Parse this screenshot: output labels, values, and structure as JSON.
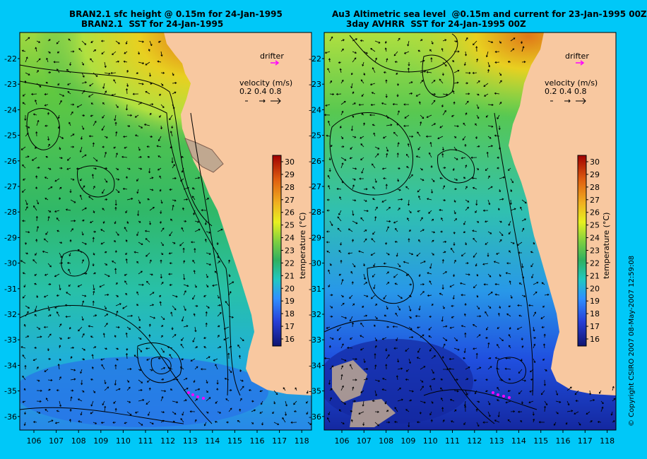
{
  "panels": [
    {
      "title1": "BRAN2.1 sfc height @ 0.15m for 24-Jan-1995",
      "title2": "BRAN2.1  SST for 24-Jan-1995"
    },
    {
      "title1": "Au3 Altimetric sea level  @0.15m and current for 23-Jan-1995 00Z",
      "title2": "3day AVHRR  SST for 24-Jan-1995 00Z"
    }
  ],
  "drifter_label": "drifter",
  "velocity": {
    "label": "velocity (m/s)",
    "scale": "0.2 0.4 0.8"
  },
  "colorbar": {
    "label": "temperature (°C)",
    "min": 16,
    "max": 30,
    "ticks": [
      "30",
      "29",
      "28",
      "27",
      "26",
      "25",
      "24",
      "23",
      "22",
      "21",
      "20",
      "19",
      "18",
      "17",
      "16"
    ]
  },
  "lon_ticks": [
    "106",
    "107",
    "108",
    "109",
    "110",
    "111",
    "112",
    "113",
    "114",
    "115",
    "116",
    "117",
    "118"
  ],
  "lat_ticks": [
    "-22",
    "-23",
    "-24",
    "-25",
    "-26",
    "-27",
    "-28",
    "-29",
    "-30",
    "-31",
    "-32",
    "-33",
    "-34",
    "-35",
    "-36"
  ],
  "copyright": "© Copyright CSIRO 2007    08-May-2007 12:59:08",
  "colors": {
    "background": "#00c8f8",
    "land": "#f8c8a0",
    "drifter": "#ff00ff"
  }
}
